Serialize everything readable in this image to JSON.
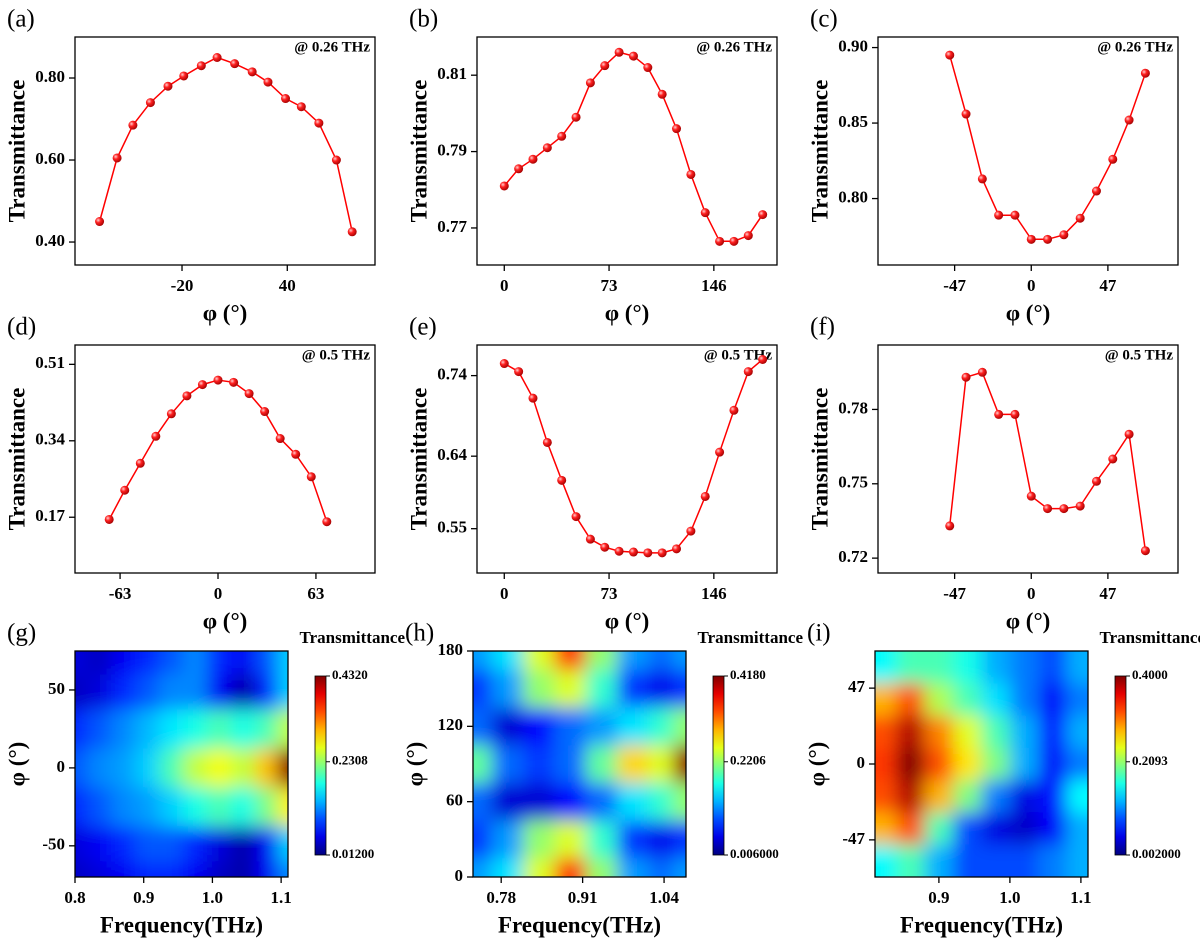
{
  "chart_data": [
    {
      "type": "line",
      "label": "(a)",
      "annotation": "@ 0.26 THz",
      "x_label": "φ (°)",
      "y_label": "Transmittance",
      "color": "#ff0000",
      "x": [
        -67,
        -57,
        -48,
        -38,
        -28,
        -19,
        -9,
        0,
        10,
        20,
        29,
        39,
        48,
        58,
        68,
        77
      ],
      "values": [
        0.45,
        0.605,
        0.685,
        0.74,
        0.78,
        0.805,
        0.83,
        0.85,
        0.835,
        0.815,
        0.79,
        0.75,
        0.73,
        0.69,
        0.6,
        0.425
      ],
      "xlim": [
        -81,
        90
      ],
      "xticks": [
        -20,
        40
      ],
      "ylim": [
        0.344,
        0.9
      ],
      "yticks": [
        {
          "value": 0.4,
          "label": "0.40"
        },
        {
          "value": 0.6,
          "label": "0.60"
        },
        {
          "value": 0.8,
          "label": "0.80"
        }
      ]
    },
    {
      "type": "line",
      "label": "(b)",
      "annotation": "@ 0.26 THz",
      "x_label": "φ (°)",
      "y_label": "Transmittance",
      "color": "#ff0000",
      "x": [
        0,
        10,
        20,
        30,
        40,
        50,
        60,
        70,
        80,
        90,
        100,
        110,
        120,
        130,
        140,
        150,
        160,
        170,
        180
      ],
      "values": [
        0.781,
        0.7855,
        0.788,
        0.791,
        0.794,
        0.799,
        0.808,
        0.8125,
        0.816,
        0.815,
        0.812,
        0.805,
        0.796,
        0.784,
        0.774,
        0.7665,
        0.7665,
        0.768,
        0.7735
      ],
      "xlim": [
        -19,
        190
      ],
      "xticks": [
        0,
        73,
        146
      ],
      "ylim": [
        0.7603,
        0.82
      ],
      "yticks": [
        0.77,
        0.79,
        0.81
      ]
    },
    {
      "type": "line",
      "label": "(c)",
      "annotation": "@ 0.26 THz",
      "x_label": "φ (°)",
      "y_label": "Transmittance",
      "color": "#ff0000",
      "x": [
        -50,
        -40,
        -30,
        -20,
        -10,
        0,
        10,
        20,
        30,
        40,
        50,
        60,
        70
      ],
      "values": [
        0.895,
        0.856,
        0.813,
        0.789,
        0.789,
        0.773,
        0.773,
        0.776,
        0.787,
        0.805,
        0.826,
        0.852,
        0.883
      ],
      "xlim": [
        -94,
        90
      ],
      "xticks": [
        -47,
        0,
        47
      ],
      "ylim": [
        0.756,
        0.907
      ],
      "yticks": [
        {
          "value": 0.8,
          "label": "0.80"
        },
        0.85,
        {
          "value": 0.9,
          "label": "0.90"
        }
      ]
    },
    {
      "type": "line",
      "label": "(d)",
      "annotation": "@ 0.5 THz",
      "x_label": "φ (°)",
      "y_label": "Transmittance",
      "color": "#ff0000",
      "x": [
        -70,
        -60,
        -50,
        -40,
        -30,
        -20,
        -10,
        0,
        10,
        20,
        30,
        40,
        50,
        60,
        70
      ],
      "values": [
        0.165,
        0.23,
        0.29,
        0.35,
        0.4,
        0.44,
        0.465,
        0.475,
        0.47,
        0.445,
        0.405,
        0.345,
        0.31,
        0.26,
        0.16
      ],
      "xlim": [
        -92,
        101
      ],
      "xticks": [
        -63,
        0,
        63
      ],
      "ylim": [
        0.046,
        0.553
      ],
      "yticks": [
        0.17,
        0.34,
        0.51
      ]
    },
    {
      "type": "line",
      "label": "(e)",
      "annotation": "@ 0.5 THz",
      "x_label": "φ (°)",
      "y_label": "Transmittance",
      "color": "#ff0000",
      "x": [
        0,
        10,
        20,
        30,
        40,
        50,
        60,
        70,
        80,
        90,
        100,
        110,
        120,
        130,
        140,
        150,
        160,
        170,
        180
      ],
      "values": [
        0.755,
        0.745,
        0.712,
        0.657,
        0.61,
        0.565,
        0.537,
        0.527,
        0.522,
        0.521,
        0.52,
        0.52,
        0.525,
        0.547,
        0.59,
        0.645,
        0.697,
        0.745,
        0.76
      ],
      "xlim": [
        -19,
        190
      ],
      "xticks": [
        0,
        73,
        146
      ],
      "ylim": [
        0.495,
        0.778
      ],
      "yticks": [
        0.55,
        0.64,
        0.74
      ]
    },
    {
      "type": "line",
      "label": "(f)",
      "annotation": "@ 0.5 THz",
      "x_label": "φ (°)",
      "y_label": "Transmittance",
      "color": "#ff0000",
      "x": [
        -50,
        -40,
        -30,
        -20,
        -10,
        0,
        10,
        20,
        30,
        40,
        50,
        60,
        70
      ],
      "values": [
        0.733,
        0.793,
        0.795,
        0.778,
        0.778,
        0.745,
        0.74,
        0.74,
        0.741,
        0.751,
        0.76,
        0.77,
        0.723
      ],
      "xlim": [
        -94,
        90
      ],
      "xticks": [
        -47,
        0,
        47
      ],
      "ylim": [
        0.714,
        0.806
      ],
      "yticks": [
        0.72,
        0.75,
        0.78
      ]
    },
    {
      "type": "heatmap",
      "label": "(g)",
      "x_label": "Frequency(THz)",
      "y_label": "φ (°)",
      "colorbar_label": "Transmittance",
      "x": [
        0.8,
        0.835,
        0.87,
        0.905,
        0.94,
        0.975,
        1.01,
        1.045,
        1.08,
        1.11
      ],
      "y": [
        70,
        50,
        25,
        0,
        -25,
        -50,
        -70
      ],
      "z": [
        [
          0.05,
          0.04,
          0.06,
          0.08,
          0.1,
          0.12,
          0.08,
          0.06,
          0.1,
          0.15
        ],
        [
          0.04,
          0.05,
          0.08,
          0.1,
          0.12,
          0.12,
          0.06,
          0.03,
          0.08,
          0.15
        ],
        [
          0.08,
          0.1,
          0.12,
          0.14,
          0.16,
          0.18,
          0.2,
          0.18,
          0.2,
          0.25
        ],
        [
          0.1,
          0.12,
          0.13,
          0.15,
          0.2,
          0.25,
          0.27,
          0.25,
          0.3,
          0.43
        ],
        [
          0.08,
          0.1,
          0.12,
          0.13,
          0.15,
          0.18,
          0.2,
          0.18,
          0.22,
          0.28
        ],
        [
          0.05,
          0.06,
          0.08,
          0.1,
          0.1,
          0.08,
          0.05,
          0.03,
          0.06,
          0.15
        ],
        [
          0.04,
          0.05,
          0.06,
          0.08,
          0.08,
          0.06,
          0.04,
          0.03,
          0.06,
          0.12
        ]
      ],
      "xlim": [
        0.8,
        1.11
      ],
      "xticks": [
        0.8,
        0.9,
        {
          "value": 1,
          "label": "1.0"
        },
        1.1
      ],
      "ylim": [
        -70,
        75
      ],
      "yticks": [
        -50,
        0,
        50
      ],
      "zlim": [
        0.012,
        0.432
      ],
      "zticks": [
        {
          "value": 0.012,
          "label": "0.01200"
        },
        0.2308,
        {
          "value": 0.432,
          "label": "0.4320"
        }
      ]
    },
    {
      "type": "heatmap",
      "label": "(h)",
      "x_label": "Frequency(THz)",
      "y_label": "φ (°)",
      "colorbar_label": "Transmittance",
      "x": [
        0.74,
        0.79,
        0.84,
        0.89,
        0.94,
        0.99,
        1.04,
        1.07
      ],
      "y": [
        180,
        150,
        120,
        90,
        60,
        30,
        0
      ],
      "z": [
        [
          0.12,
          0.15,
          0.25,
          0.35,
          0.22,
          0.12,
          0.1,
          0.12
        ],
        [
          0.08,
          0.12,
          0.22,
          0.25,
          0.18,
          0.08,
          0.05,
          0.08
        ],
        [
          0.1,
          0.04,
          0.06,
          0.1,
          0.12,
          0.15,
          0.18,
          0.22
        ],
        [
          0.2,
          0.1,
          0.08,
          0.1,
          0.2,
          0.28,
          0.25,
          0.41
        ],
        [
          0.1,
          0.04,
          0.04,
          0.06,
          0.1,
          0.15,
          0.18,
          0.22
        ],
        [
          0.08,
          0.12,
          0.22,
          0.25,
          0.18,
          0.08,
          0.05,
          0.08
        ],
        [
          0.12,
          0.15,
          0.25,
          0.35,
          0.22,
          0.12,
          0.1,
          0.12
        ]
      ],
      "xlim": [
        0.735,
        1.075
      ],
      "xticks": [
        0.78,
        0.91,
        1.04
      ],
      "ylim": [
        0,
        180
      ],
      "yticks": [
        0,
        60,
        120,
        180
      ],
      "zlim": [
        0.006,
        0.418
      ],
      "zticks": [
        {
          "value": 0.006,
          "label": "0.006000"
        },
        0.2206,
        {
          "value": 0.418,
          "label": "0.4180"
        }
      ]
    },
    {
      "type": "heatmap",
      "label": "(i)",
      "x_label": "Frequency(THz)",
      "y_label": "φ (°)",
      "colorbar_label": "Transmittance",
      "x": [
        0.82,
        0.86,
        0.9,
        0.94,
        0.98,
        1.02,
        1.06,
        1.1
      ],
      "y": [
        60,
        40,
        20,
        0,
        -20,
        -40,
        -60
      ],
      "z": [
        [
          0.15,
          0.18,
          0.18,
          0.16,
          0.12,
          0.1,
          0.08,
          0.12
        ],
        [
          0.28,
          0.32,
          0.22,
          0.18,
          0.14,
          0.1,
          0.05,
          0.1
        ],
        [
          0.32,
          0.38,
          0.3,
          0.24,
          0.18,
          0.12,
          0.06,
          0.12
        ],
        [
          0.33,
          0.4,
          0.32,
          0.26,
          0.2,
          0.12,
          0.05,
          0.1
        ],
        [
          0.32,
          0.38,
          0.28,
          0.2,
          0.1,
          0.04,
          0.06,
          0.15
        ],
        [
          0.28,
          0.32,
          0.18,
          0.08,
          0.04,
          0.03,
          0.05,
          0.12
        ],
        [
          0.15,
          0.18,
          0.12,
          0.08,
          0.08,
          0.08,
          0.1,
          0.12
        ]
      ],
      "xlim": [
        0.81,
        1.11
      ],
      "xticks": [
        0.9,
        {
          "value": 1,
          "label": "1.0"
        },
        1.1
      ],
      "ylim": [
        -70,
        70
      ],
      "yticks": [
        -47,
        0,
        47
      ],
      "zlim": [
        0.002,
        0.4
      ],
      "zticks": [
        {
          "value": 0.002,
          "label": "0.002000"
        },
        0.2093,
        {
          "value": 0.4,
          "label": "0.4000"
        }
      ]
    }
  ]
}
